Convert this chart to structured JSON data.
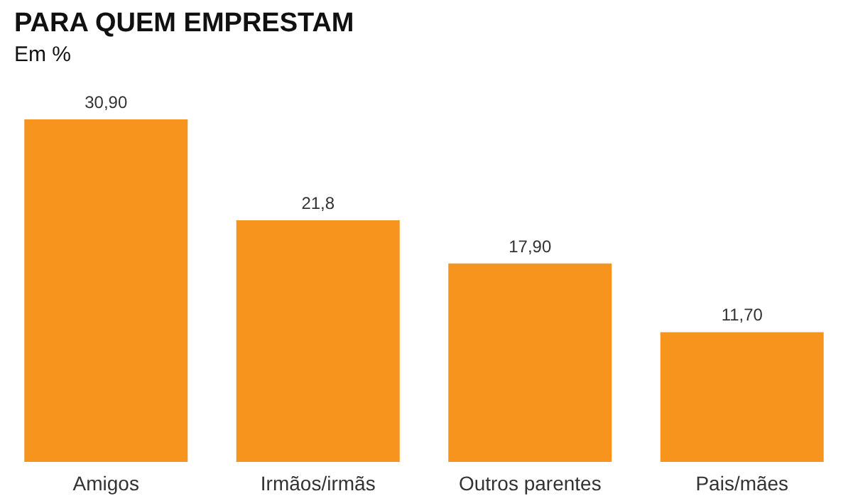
{
  "chart_data": {
    "type": "bar",
    "title": "PARA QUEM EMPRESTAM",
    "subtitle": "Em %",
    "categories": [
      "Amigos",
      "Irmãos/irmãs",
      "Outros parentes",
      "Pais/mães"
    ],
    "values": [
      30.9,
      21.8,
      17.9,
      11.7
    ],
    "value_labels": [
      "30,90",
      "21,8",
      "17,90",
      "11,70"
    ],
    "color": "#f7941d"
  }
}
